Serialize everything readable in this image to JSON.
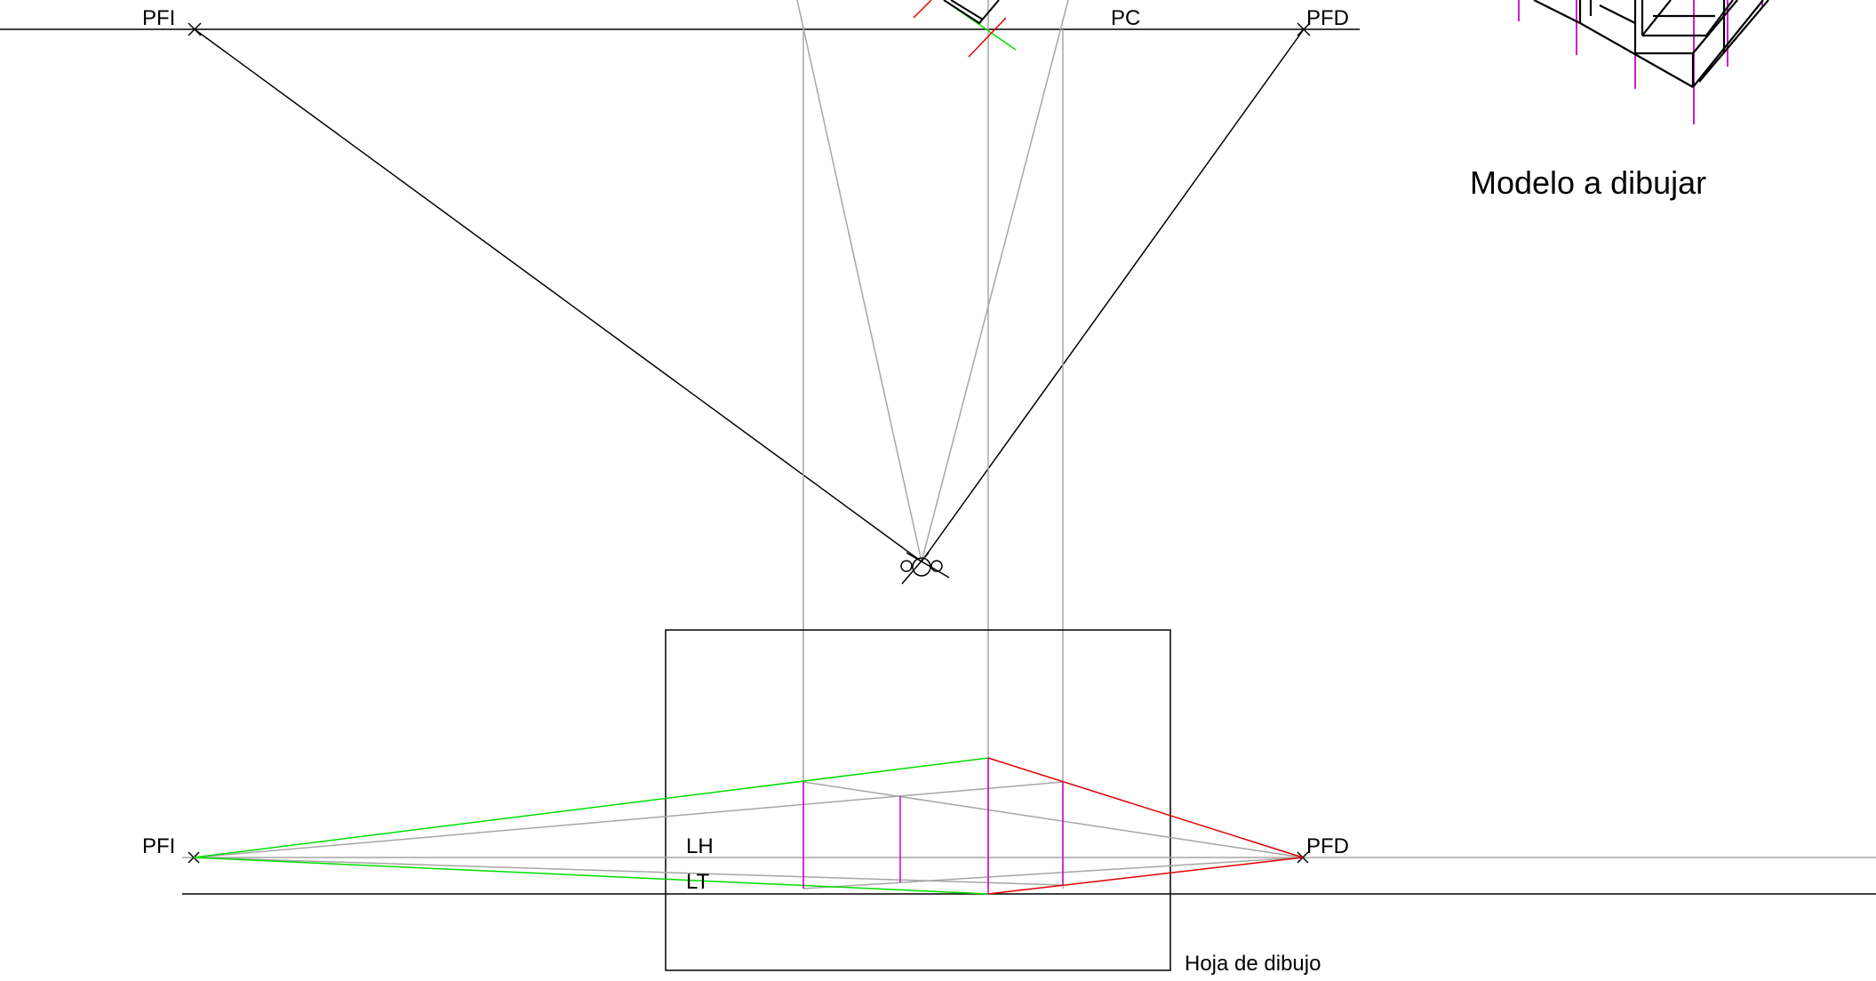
{
  "labels": {
    "pfi_top": "PFI",
    "pfd_top": "PFD",
    "pc": "PC",
    "pfi_bottom": "PFI",
    "pfd_bottom": "PFD",
    "lh": "LH",
    "lt": "LT",
    "sheet": "Hoja de dibujo",
    "model": "Modelo a dibujar"
  },
  "colors": {
    "line": "#000000",
    "construction": "#a6a6a6",
    "green": "#00dd00",
    "red": "#e00000",
    "magenta": "#cc00cc"
  }
}
